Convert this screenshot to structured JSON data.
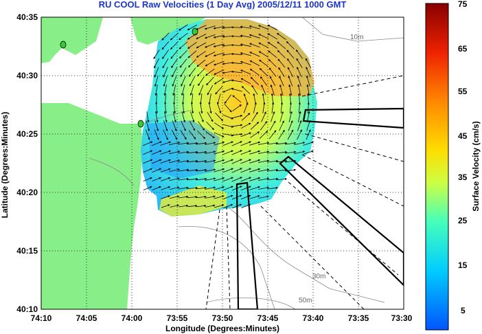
{
  "title": "RU COOL Raw Velocities (1 Day Avg) 2005/12/11 1000 GMT",
  "map": {
    "y_ticks": [
      "40:35",
      "40:30",
      "40:25",
      "40:20",
      "40:15",
      "40:10"
    ],
    "x_ticks": [
      "74:10",
      "74:05",
      "74:00",
      "73:55",
      "73:50",
      "73:45",
      "73:40",
      "73:35",
      "73:30"
    ],
    "xlabel": "Longitude (Degrees:Minutes)",
    "ylabel": "Latitude (Degrees:Minutes)",
    "contour_labels": [
      "10m",
      "30m",
      "50m"
    ],
    "land_color": "#88ee88"
  },
  "colorbar": {
    "label": "Surface Velocity (cm/s)",
    "ticks": [
      "75",
      "65",
      "55",
      "45",
      "35",
      "25",
      "15",
      "5"
    ],
    "min": 0,
    "max": 75
  }
}
